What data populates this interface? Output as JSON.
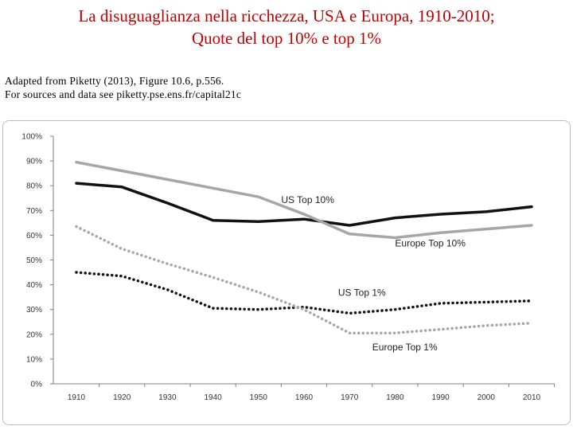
{
  "header": {
    "title_line1": "La disuguaglianza nella ricchezza, USA e Europa, 1910-2010;",
    "title_line2": "Quote del top 10% e top 1%"
  },
  "source": {
    "line1": "Adapted from Piketty (2013), Figure 10.6, p.556.",
    "line2": "For sources and data see piketty.pse.ens.fr/capital21c"
  },
  "chart_data": {
    "type": "line",
    "title": "",
    "xlabel": "",
    "ylabel": "",
    "x": [
      1910,
      1920,
      1930,
      1940,
      1950,
      1960,
      1970,
      1980,
      1990,
      2000,
      2010
    ],
    "ylim": [
      0,
      100
    ],
    "yticks": [
      0,
      10,
      20,
      30,
      40,
      50,
      60,
      70,
      80,
      90,
      100
    ],
    "ytick_labels": [
      "0%",
      "10%",
      "20%",
      "30%",
      "40%",
      "50%",
      "60%",
      "70%",
      "80%",
      "90%",
      "100%"
    ],
    "grid": false,
    "series": [
      {
        "name": "US Top 10%",
        "color": "#111111",
        "style": "solid",
        "values": [
          81,
          79.5,
          73,
          66,
          65.5,
          66.5,
          64,
          67,
          68.5,
          69.5,
          71.5
        ],
        "label_anchor": [
          1955,
          73
        ]
      },
      {
        "name": "Europe Top 10%",
        "color": "#a6a6a6",
        "style": "solid",
        "values": [
          89.5,
          86,
          82.5,
          79,
          75.5,
          68.5,
          60.5,
          59,
          61,
          62.5,
          64
        ],
        "label_anchor": [
          1980,
          55.5
        ]
      },
      {
        "name": "US Top 1%",
        "color": "#111111",
        "style": "dotted",
        "values": [
          45,
          43.5,
          38,
          30.5,
          30,
          31,
          28.5,
          30,
          32.5,
          33,
          33.5
        ],
        "label_anchor": [
          1967.5,
          35.5
        ]
      },
      {
        "name": "Europe Top 1%",
        "color": "#a6a6a6",
        "style": "dotted",
        "values": [
          63.5,
          54.5,
          48.5,
          43,
          37,
          30,
          20.5,
          20.5,
          22,
          23.5,
          24.5
        ],
        "label_anchor": [
          1975,
          13.5
        ]
      }
    ]
  }
}
